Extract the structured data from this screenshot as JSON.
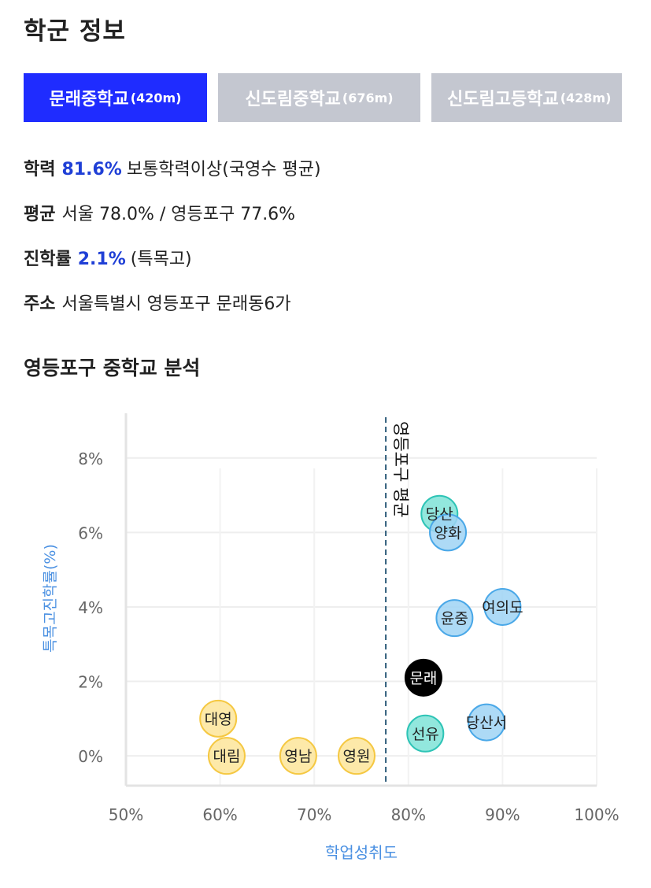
{
  "page_title": "학군 정보",
  "tabs": [
    {
      "name": "문래중학교",
      "distance": "(420m)",
      "active": true
    },
    {
      "name": "신도림중학교",
      "distance": "(676m)",
      "active": false
    },
    {
      "name": "신도림고등학교",
      "distance": "(428m)",
      "active": false
    }
  ],
  "info": {
    "academic": {
      "label": "학력",
      "value": "81.6%",
      "text": "보통학력이상(국영수 평균)"
    },
    "average": {
      "label": "평균",
      "text": "서울 78.0% / 영등포구 77.6%"
    },
    "advancement": {
      "label": "진학률",
      "value": "2.1%",
      "text": "(특목고)"
    },
    "address": {
      "label": "주소",
      "text": "서울특별시 영등포구 문래동6가"
    }
  },
  "section_title": "영등포구 중학교 분석",
  "colors": {
    "accent_blue": "#1f2cff",
    "tab_inactive": "#c4c7d0",
    "axis_label": "#4a90e2",
    "yellow_fill": "#fde59a",
    "yellow_stroke": "#f5c842",
    "teal_fill": "#7fe3d7",
    "teal_stroke": "#2ec4b6",
    "blue_fill": "#9fd3f5",
    "blue_stroke": "#4aa8e8",
    "highlight": "#000000"
  },
  "chart_data": {
    "type": "scatter",
    "xlabel": "학업성취도",
    "ylabel": "특목고진학률(%)",
    "xlim": [
      50,
      100
    ],
    "ylim": [
      -0.8,
      9.2
    ],
    "x_ticks": [
      50,
      60,
      70,
      80,
      90,
      100
    ],
    "x_tick_labels": [
      "50%",
      "60%",
      "70%",
      "80%",
      "90%",
      "100%"
    ],
    "y_ticks": [
      0,
      2,
      4,
      6,
      8
    ],
    "y_tick_labels": [
      "0%",
      "2%",
      "4%",
      "6%",
      "8%"
    ],
    "grid": true,
    "reference_line": {
      "x": 77.6,
      "label": "영등포구 평균"
    },
    "points": [
      {
        "name": "대영",
        "x": 59.8,
        "y": 1.0,
        "group": "yellow"
      },
      {
        "name": "대림",
        "x": 60.7,
        "y": 0.0,
        "group": "yellow"
      },
      {
        "name": "영남",
        "x": 68.3,
        "y": 0.0,
        "group": "yellow"
      },
      {
        "name": "영원",
        "x": 74.5,
        "y": 0.0,
        "group": "yellow"
      },
      {
        "name": "선유",
        "x": 81.8,
        "y": 0.6,
        "group": "teal"
      },
      {
        "name": "당산",
        "x": 83.3,
        "y": 6.5,
        "group": "teal"
      },
      {
        "name": "양화",
        "x": 84.2,
        "y": 6.0,
        "group": "blue"
      },
      {
        "name": "윤중",
        "x": 84.9,
        "y": 3.7,
        "group": "blue"
      },
      {
        "name": "여의도",
        "x": 90.0,
        "y": 4.0,
        "group": "blue"
      },
      {
        "name": "당산서",
        "x": 88.3,
        "y": 0.9,
        "group": "blue"
      },
      {
        "name": "문래",
        "x": 81.6,
        "y": 2.1,
        "group": "highlight"
      }
    ]
  }
}
